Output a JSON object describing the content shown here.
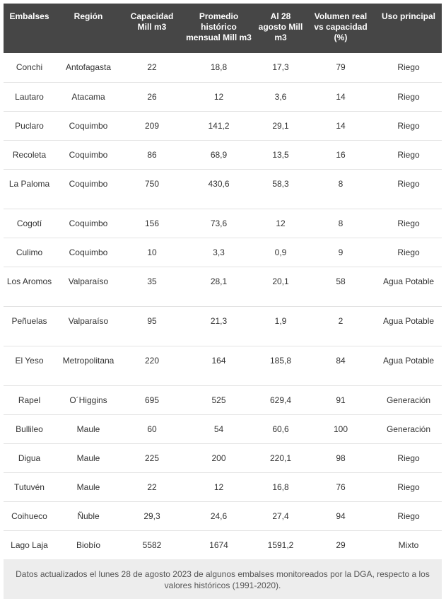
{
  "table": {
    "columns": [
      "Embalses",
      "Región",
      "Capacidad Mill m3",
      "Promedio histórico mensual Mill m3",
      "Al 28 agosto Mill m3",
      "Volumen real vs capacidad (%)",
      "Uso principal"
    ],
    "rows": [
      [
        "Conchi",
        "Antofagasta",
        "22",
        "18,8",
        "17,3",
        "79",
        "Riego"
      ],
      [
        "Lautaro",
        "Atacama",
        "26",
        "12",
        "3,6",
        "14",
        "Riego"
      ],
      [
        "Puclaro",
        "Coquimbo",
        "209",
        "141,2",
        "29,1",
        "14",
        "Riego"
      ],
      [
        "Recoleta",
        "Coquimbo",
        "86",
        "68,9",
        "13,5",
        "16",
        "Riego"
      ],
      [
        "La Paloma",
        "Coquimbo",
        "750",
        "430,6",
        "58,3",
        "8",
        "Riego"
      ],
      [
        "Cogotí",
        "Coquimbo",
        "156",
        "73,6",
        "12",
        "8",
        "Riego"
      ],
      [
        "Culimo",
        "Coquimbo",
        "10",
        "3,3",
        "0,9",
        "9",
        "Riego"
      ],
      [
        "Los Aromos",
        "Valparaíso",
        "35",
        "28,1",
        "20,1",
        "58",
        "Agua Potable"
      ],
      [
        "Peñuelas",
        "Valparaíso",
        "95",
        "21,3",
        "1,9",
        "2",
        "Agua Potable"
      ],
      [
        "El Yeso",
        "Metropolitana",
        "220",
        "164",
        "185,8",
        "84",
        "Agua Potable"
      ],
      [
        "Rapel",
        "O´Higgins",
        "695",
        "525",
        "629,4",
        "91",
        "Generación"
      ],
      [
        "Bullileo",
        "Maule",
        "60",
        "54",
        "60,6",
        "100",
        "Generación"
      ],
      [
        "Digua",
        "Maule",
        "225",
        "200",
        "220,1",
        "98",
        "Riego"
      ],
      [
        "Tutuvén",
        "Maule",
        "22",
        "12",
        "16,8",
        "76",
        "Riego"
      ],
      [
        "Coihueco",
        "Ñuble",
        "29,3",
        "24,6",
        "27,4",
        "94",
        "Riego"
      ],
      [
        "Lago Laja",
        "Biobío",
        "5582",
        "1674",
        "1591,2",
        "29",
        "Mixto"
      ]
    ]
  },
  "note": "Datos actualizados el lunes 28 de agosto 2023 de algunos embalses monitoreados por la DGA, respecto a los valores históricos (1991-2020)."
}
